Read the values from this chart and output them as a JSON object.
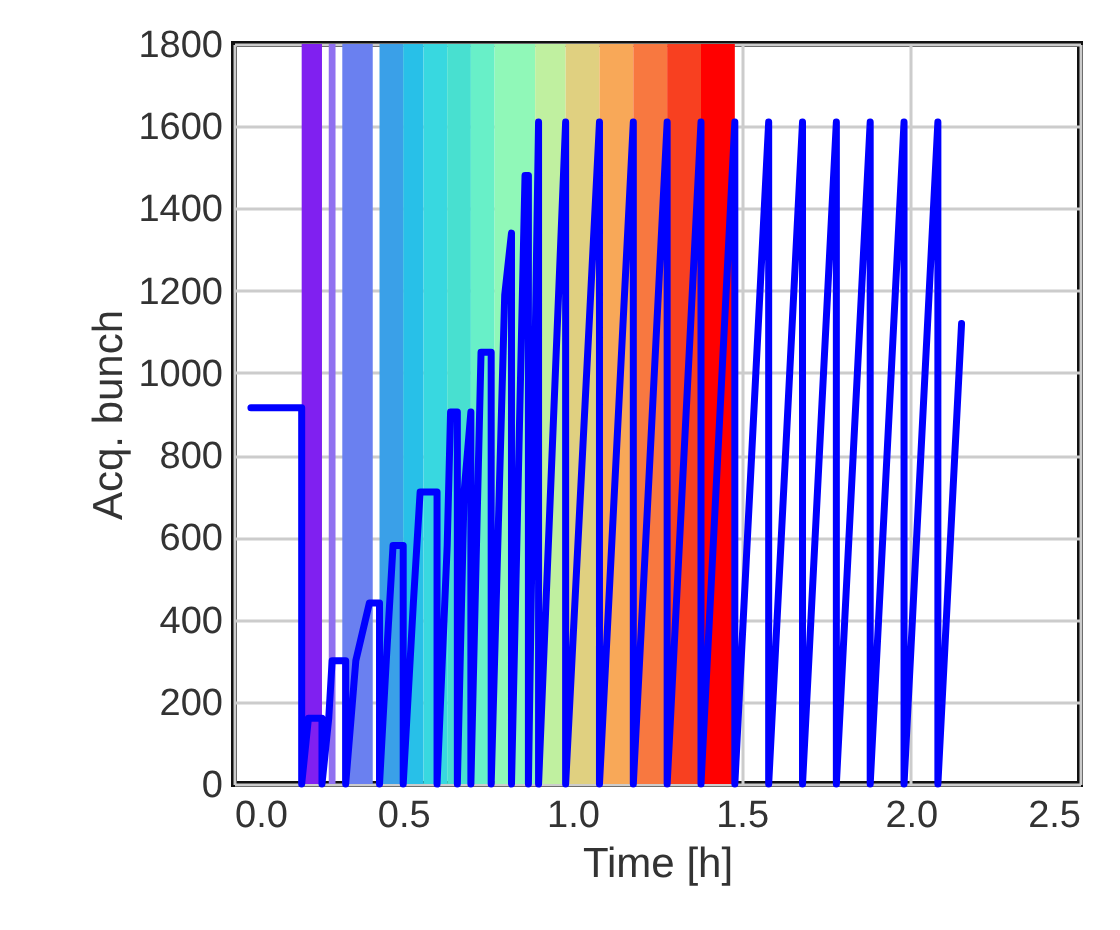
{
  "chart_data": {
    "type": "line",
    "xlabel": "Time [h]",
    "ylabel": "Acq. bunch",
    "xlim": [
      0,
      2.5
    ],
    "xticks": [
      {
        "value": 0,
        "label": "0.0"
      },
      {
        "value": 0.5,
        "label": "0.5"
      },
      {
        "value": 1,
        "label": "1.0"
      },
      {
        "value": 1.5,
        "label": "1.5"
      },
      {
        "value": 2,
        "label": "2.0"
      },
      {
        "value": 2.5,
        "label": "2.5"
      }
    ],
    "ylim": [
      0,
      1800
    ],
    "yticks": [
      0,
      200,
      400,
      600,
      800,
      1000,
      1200,
      1400,
      1600,
      1800
    ],
    "grid": true,
    "bands": [
      {
        "axis": "x",
        "from": 0.2,
        "to": 0.26,
        "color": "#8020f0"
      },
      {
        "axis": "x",
        "from": 0.28,
        "to": 0.3,
        "color": "#9070f0"
      },
      {
        "axis": "x",
        "from": 0.32,
        "to": 0.41,
        "color": "#6a80f0"
      },
      {
        "axis": "x",
        "from": 0.43,
        "to": 0.5,
        "color": "#3aa0e8"
      },
      {
        "axis": "x",
        "from": 0.5,
        "to": 0.56,
        "color": "#28c0e8"
      },
      {
        "axis": "x",
        "from": 0.56,
        "to": 0.63,
        "color": "#38d8e0"
      },
      {
        "axis": "x",
        "from": 0.63,
        "to": 0.7,
        "color": "#48e0d0"
      },
      {
        "axis": "x",
        "from": 0.7,
        "to": 0.77,
        "color": "#68f0c8"
      },
      {
        "axis": "x",
        "from": 0.77,
        "to": 0.89,
        "color": "#90f8b8"
      },
      {
        "axis": "x",
        "from": 0.89,
        "to": 0.98,
        "color": "#c0f0a0"
      },
      {
        "axis": "x",
        "from": 0.98,
        "to": 1.08,
        "color": "#e0d080"
      },
      {
        "axis": "x",
        "from": 1.08,
        "to": 1.18,
        "color": "#f8a858"
      },
      {
        "axis": "x",
        "from": 1.18,
        "to": 1.28,
        "color": "#f87840"
      },
      {
        "axis": "x",
        "from": 1.28,
        "to": 1.38,
        "color": "#f84020"
      },
      {
        "axis": "x",
        "from": 1.38,
        "to": 1.48,
        "color": "#ff0000"
      }
    ],
    "series": [
      {
        "color": "#0000ff",
        "x": [
          0.05,
          0.2,
          0.2,
          0.22,
          0.26,
          0.26,
          0.28,
          0.29,
          0.33,
          0.33,
          0.36,
          0.4,
          0.43,
          0.43,
          0.45,
          0.47,
          0.5,
          0.5,
          0.53,
          0.55,
          0.6,
          0.6,
          0.63,
          0.64,
          0.66,
          0.66,
          0.68,
          0.7,
          0.7,
          0.73,
          0.76,
          0.76,
          0.8,
          0.82,
          0.82,
          0.86,
          0.87,
          0.87,
          0.9,
          0.9,
          0.98,
          0.98,
          1.08,
          1.08,
          1.18,
          1.18,
          1.28,
          1.28,
          1.38,
          1.38,
          1.48,
          1.48,
          1.58,
          1.58,
          1.68,
          1.68,
          1.78,
          1.78,
          1.88,
          1.88,
          1.98,
          1.98,
          2.08,
          2.08,
          2.15
        ],
        "values": [
          915,
          915,
          0,
          160,
          160,
          0,
          160,
          300,
          300,
          0,
          300,
          440,
          440,
          0,
          300,
          580,
          580,
          0,
          440,
          710,
          710,
          0,
          580,
          905,
          905,
          0,
          710,
          905,
          0,
          1050,
          1050,
          0,
          1190,
          1340,
          0,
          1480,
          1480,
          0,
          1610,
          0,
          1610,
          0,
          1610,
          0,
          1610,
          0,
          1610,
          0,
          1610,
          0,
          1610,
          0,
          1610,
          0,
          1610,
          0,
          1610,
          0,
          1610,
          0,
          1610,
          0,
          1610,
          0,
          1120
        ]
      }
    ]
  }
}
